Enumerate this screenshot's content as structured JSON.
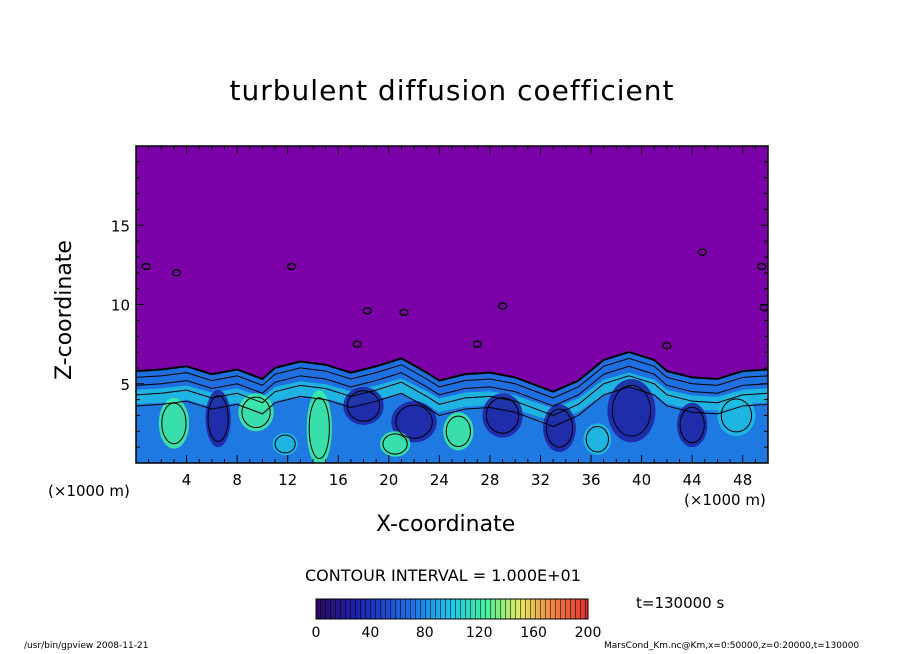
{
  "chart_data": {
    "type": "heatmap",
    "title": "turbulent diffusion coefficient",
    "xlabel": "X-coordinate",
    "ylabel": "Z-coordinate",
    "x_unit_label": "(×1000 m)",
    "z_unit_label": "(×1000 m)",
    "xlim": [
      0,
      50
    ],
    "ylim": [
      0,
      20
    ],
    "x_ticks": [
      4,
      8,
      12,
      16,
      20,
      24,
      28,
      32,
      36,
      40,
      44,
      48
    ],
    "y_ticks": [
      5,
      10,
      15
    ],
    "contour_interval_text": "CONTOUR INTERVAL = 1.000E+01",
    "contour_interval": 10,
    "colorbar": {
      "min": 0,
      "max": 200,
      "ticks": [
        0,
        40,
        80,
        120,
        160,
        200
      ]
    },
    "boundary_layer_top": [
      [
        0,
        5.8
      ],
      [
        2,
        5.9
      ],
      [
        4,
        6.1
      ],
      [
        6,
        5.6
      ],
      [
        8,
        5.9
      ],
      [
        10,
        5.3
      ],
      [
        11,
        6.0
      ],
      [
        13,
        6.4
      ],
      [
        15,
        6.2
      ],
      [
        17,
        5.7
      ],
      [
        19,
        6.1
      ],
      [
        21,
        6.6
      ],
      [
        23,
        5.7
      ],
      [
        24,
        5.2
      ],
      [
        26,
        5.6
      ],
      [
        28,
        5.7
      ],
      [
        30,
        5.4
      ],
      [
        32,
        4.8
      ],
      [
        33,
        4.5
      ],
      [
        35,
        5.2
      ],
      [
        37,
        6.5
      ],
      [
        39,
        7.0
      ],
      [
        41,
        6.5
      ],
      [
        42,
        5.8
      ],
      [
        44,
        5.4
      ],
      [
        46,
        5.3
      ],
      [
        48,
        5.8
      ],
      [
        50,
        5.9
      ]
    ],
    "upper_patches": [
      [
        0.8,
        12.4
      ],
      [
        3.2,
        12.0
      ],
      [
        12.3,
        12.4
      ],
      [
        18.3,
        9.6
      ],
      [
        21.2,
        9.5
      ],
      [
        29.0,
        9.9
      ],
      [
        44.8,
        13.3
      ],
      [
        49.5,
        12.4
      ],
      [
        49.7,
        9.8
      ],
      [
        17.5,
        7.5
      ],
      [
        42.0,
        7.4
      ],
      [
        27.0,
        7.5
      ]
    ],
    "colors": {
      "background_field": "#7b00a8",
      "low": "#2020a0",
      "mid_low": "#1e6fe0",
      "mid": "#20c0e0",
      "mid_high": "#40f0a0",
      "contour_line": "#000000"
    }
  },
  "time_label": "t=130000 s",
  "footer_left": "/usr/bin/gpview   2008-11-21",
  "footer_right": "MarsCond_Km.nc@Km,x=0:50000,z=0:20000,t=130000"
}
